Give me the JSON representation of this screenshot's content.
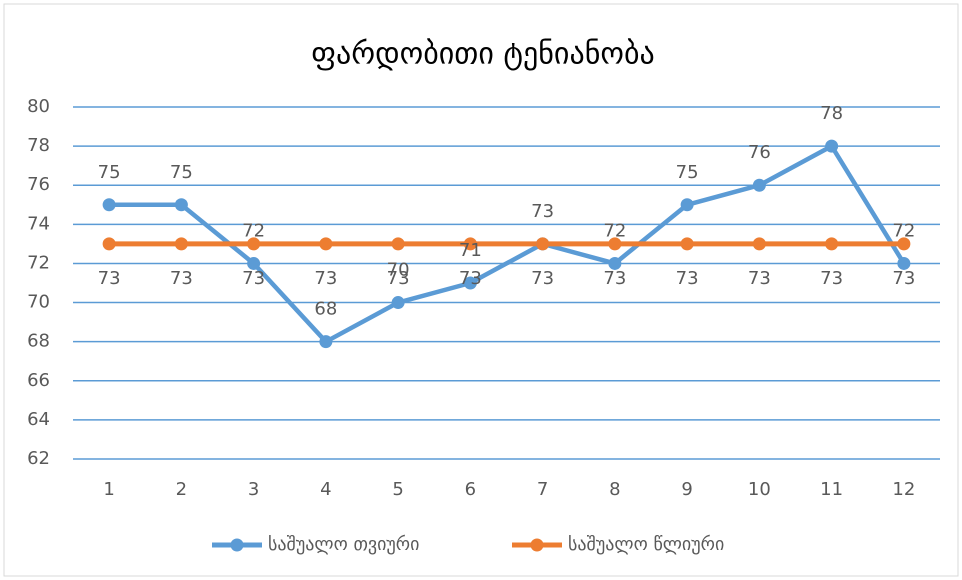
{
  "chart_data": {
    "type": "line",
    "title": "ფარდობითი ტენიანობა",
    "categories": [
      1,
      2,
      3,
      4,
      5,
      6,
      7,
      8,
      9,
      10,
      11,
      12
    ],
    "series": [
      {
        "name": "საშუალო თვიური",
        "color": "#5b9bd5",
        "values": [
          75,
          75,
          72,
          68,
          70,
          71,
          73,
          72,
          75,
          76,
          78,
          72
        ]
      },
      {
        "name": "საშუალო წლიური",
        "color": "#ed7d31",
        "values": [
          73,
          73,
          73,
          73,
          73,
          73,
          73,
          73,
          73,
          73,
          73,
          73
        ]
      }
    ],
    "ylim": [
      62,
      80
    ],
    "yticks": [
      62,
      64,
      66,
      68,
      70,
      72,
      74,
      76,
      78,
      80
    ],
    "grid": true,
    "legend": "bottom"
  }
}
